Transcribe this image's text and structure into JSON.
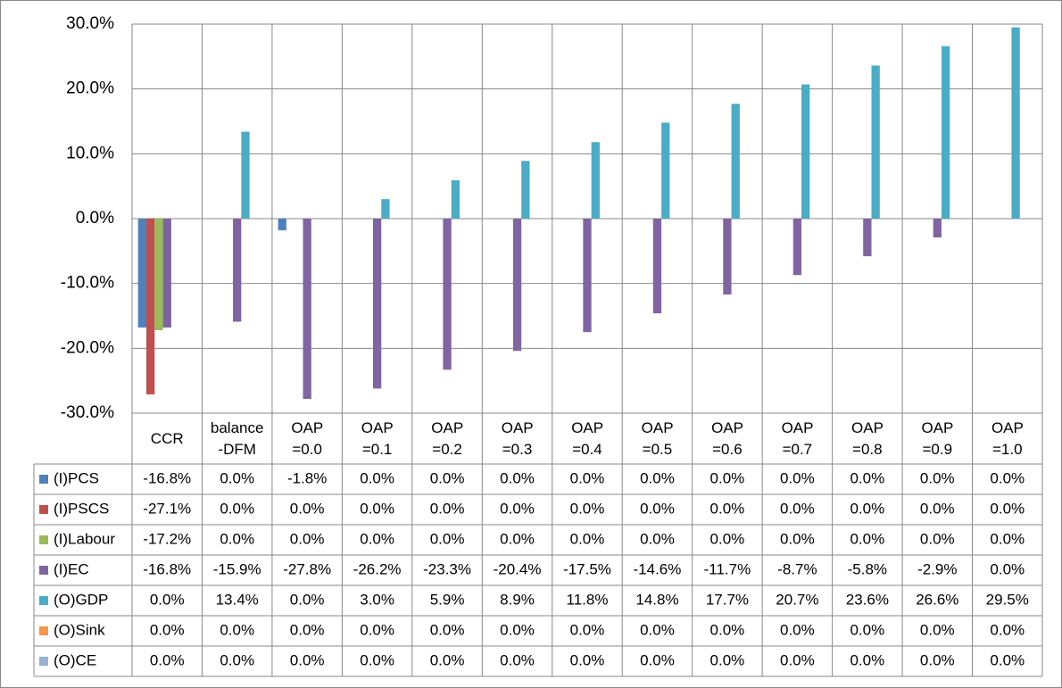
{
  "chart_data": {
    "type": "bar",
    "categories": [
      "CCR",
      "balance -DFM",
      "OAP =0.0",
      "OAP =0.1",
      "OAP =0.2",
      "OAP =0.3",
      "OAP =0.4",
      "OAP =0.5",
      "OAP =0.6",
      "OAP =0.7",
      "OAP =0.8",
      "OAP =0.9",
      "OAP =1.0"
    ],
    "series": [
      {
        "name": "(I)PCS",
        "color": "#4f81bd",
        "values": [
          -16.8,
          0,
          -1.8,
          0,
          0,
          0,
          0,
          0,
          0,
          0,
          0,
          0,
          0
        ],
        "value_labels": [
          "-16.8%",
          "0.0%",
          "-1.8%",
          "0.0%",
          "0.0%",
          "0.0%",
          "0.0%",
          "0.0%",
          "0.0%",
          "0.0%",
          "0.0%",
          "0.0%",
          "0.0%"
        ]
      },
      {
        "name": "(I)PSCS",
        "color": "#c0504d",
        "values": [
          -27.1,
          0,
          0,
          0,
          0,
          0,
          0,
          0,
          0,
          0,
          0,
          0,
          0
        ],
        "value_labels": [
          "-27.1%",
          "0.0%",
          "0.0%",
          "0.0%",
          "0.0%",
          "0.0%",
          "0.0%",
          "0.0%",
          "0.0%",
          "0.0%",
          "0.0%",
          "0.0%",
          "0.0%"
        ]
      },
      {
        "name": "(I)Labour",
        "color": "#9bbb59",
        "values": [
          -17.2,
          0,
          0,
          0,
          0,
          0,
          0,
          0,
          0,
          0,
          0,
          0,
          0
        ],
        "value_labels": [
          "-17.2%",
          "0.0%",
          "0.0%",
          "0.0%",
          "0.0%",
          "0.0%",
          "0.0%",
          "0.0%",
          "0.0%",
          "0.0%",
          "0.0%",
          "0.0%",
          "0.0%"
        ]
      },
      {
        "name": "(I)EC",
        "color": "#8064a2",
        "values": [
          -16.8,
          -15.9,
          -27.8,
          -26.2,
          -23.3,
          -20.4,
          -17.5,
          -14.6,
          -11.7,
          -8.7,
          -5.8,
          -2.9,
          0
        ],
        "value_labels": [
          "-16.8%",
          "-15.9%",
          "-27.8%",
          "-26.2%",
          "-23.3%",
          "-20.4%",
          "-17.5%",
          "-14.6%",
          "-11.7%",
          "-8.7%",
          "-5.8%",
          "-2.9%",
          "0.0%"
        ]
      },
      {
        "name": "(O)GDP",
        "color": "#4bacc6",
        "values": [
          0,
          13.4,
          0,
          3.0,
          5.9,
          8.9,
          11.8,
          14.8,
          17.7,
          20.7,
          23.6,
          26.6,
          29.5
        ],
        "value_labels": [
          "0.0%",
          "13.4%",
          "0.0%",
          "3.0%",
          "5.9%",
          "8.9%",
          "11.8%",
          "14.8%",
          "17.7%",
          "20.7%",
          "23.6%",
          "26.6%",
          "29.5%"
        ]
      },
      {
        "name": "(O)Sink",
        "color": "#f79646",
        "values": [
          0,
          0,
          0,
          0,
          0,
          0,
          0,
          0,
          0,
          0,
          0,
          0,
          0
        ],
        "value_labels": [
          "0.0%",
          "0.0%",
          "0.0%",
          "0.0%",
          "0.0%",
          "0.0%",
          "0.0%",
          "0.0%",
          "0.0%",
          "0.0%",
          "0.0%",
          "0.0%",
          "0.0%"
        ]
      },
      {
        "name": "(O)CE",
        "color": "#95b3d7",
        "values": [
          0,
          0,
          0,
          0,
          0,
          0,
          0,
          0,
          0,
          0,
          0,
          0,
          0
        ],
        "value_labels": [
          "0.0%",
          "0.0%",
          "0.0%",
          "0.0%",
          "0.0%",
          "0.0%",
          "0.0%",
          "0.0%",
          "0.0%",
          "0.0%",
          "0.0%",
          "0.0%",
          "0.0%"
        ]
      }
    ],
    "ylim": [
      -30,
      30
    ],
    "yticks": [
      {
        "value": -30,
        "label": "-30.0%"
      },
      {
        "value": -20,
        "label": "-20.0%"
      },
      {
        "value": -10,
        "label": "-10.0%"
      },
      {
        "value": 0,
        "label": "0.0%"
      },
      {
        "value": 10,
        "label": "10.0%"
      },
      {
        "value": 20,
        "label": "20.0%"
      },
      {
        "value": 30,
        "label": "30.0%"
      }
    ],
    "grid": true
  }
}
